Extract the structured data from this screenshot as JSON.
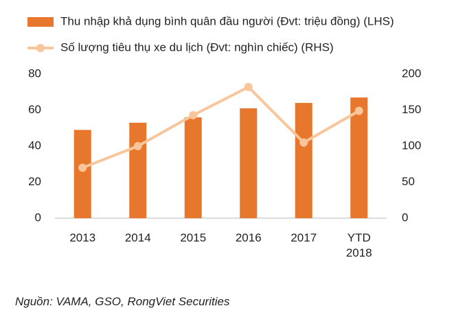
{
  "chart_data": {
    "type": "bar-line",
    "categories": [
      "2013",
      "2014",
      "2015",
      "2016",
      "2017",
      "YTD 2018"
    ],
    "series": [
      {
        "name": "Thu nhập khả dụng bình quân đầu người (Đvt: triệu đồng) (LHS)",
        "type": "bar",
        "color": "#e8772e",
        "values": [
          49,
          53,
          56,
          61,
          64,
          67
        ]
      },
      {
        "name": "Số lượng tiêu thụ xe du lịch (Đvt: nghìn chiếc) (RHS)",
        "type": "line",
        "axis": "y2",
        "color": "#f9c59b",
        "values": [
          70,
          100,
          143,
          182,
          105,
          149
        ]
      }
    ],
    "ylim": [
      0,
      80
    ],
    "yticks": [
      0,
      20,
      40,
      60,
      80
    ],
    "y2lim": [
      0,
      200
    ],
    "y2ticks": [
      0,
      50,
      100,
      150,
      200
    ],
    "source": "Nguồn: VAMA, GSO,  RongViet Securities"
  }
}
